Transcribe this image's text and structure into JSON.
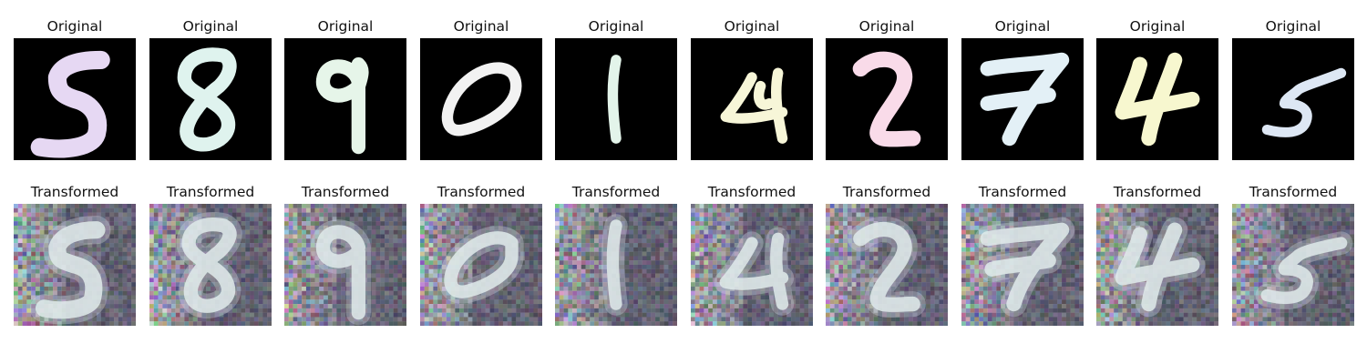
{
  "figure": {
    "rows": [
      {
        "kind": "original",
        "panels": [
          {
            "title": "Original",
            "digit": "5",
            "stroke_color": "#e6d8f3"
          },
          {
            "title": "Original",
            "digit": "8",
            "stroke_color": "#dff3ee"
          },
          {
            "title": "Original",
            "digit": "9",
            "stroke_color": "#e6f5e9"
          },
          {
            "title": "Original",
            "digit": "0",
            "stroke_color": "#f2f2f2"
          },
          {
            "title": "Original",
            "digit": "1",
            "stroke_color": "#e3f4ea"
          },
          {
            "title": "Original",
            "digit": "4",
            "stroke_color": "#f7f6d8"
          },
          {
            "title": "Original",
            "digit": "2",
            "stroke_color": "#f9dbe9"
          },
          {
            "title": "Original",
            "digit": "7",
            "stroke_color": "#e3f0f6"
          },
          {
            "title": "Original",
            "digit": "4",
            "stroke_color": "#f7f7cf"
          },
          {
            "title": "Original",
            "digit": "5",
            "stroke_color": "#dde7f4"
          }
        ]
      },
      {
        "kind": "transformed",
        "panels": [
          {
            "title": "Transformed",
            "digit": "5"
          },
          {
            "title": "Transformed",
            "digit": "8"
          },
          {
            "title": "Transformed",
            "digit": "9"
          },
          {
            "title": "Transformed",
            "digit": "0"
          },
          {
            "title": "Transformed",
            "digit": "1"
          },
          {
            "title": "Transformed",
            "digit": "4"
          },
          {
            "title": "Transformed",
            "digit": "2"
          },
          {
            "title": "Transformed",
            "digit": "7"
          },
          {
            "title": "Transformed",
            "digit": "4"
          },
          {
            "title": "Transformed",
            "digit": "5"
          }
        ]
      }
    ]
  }
}
